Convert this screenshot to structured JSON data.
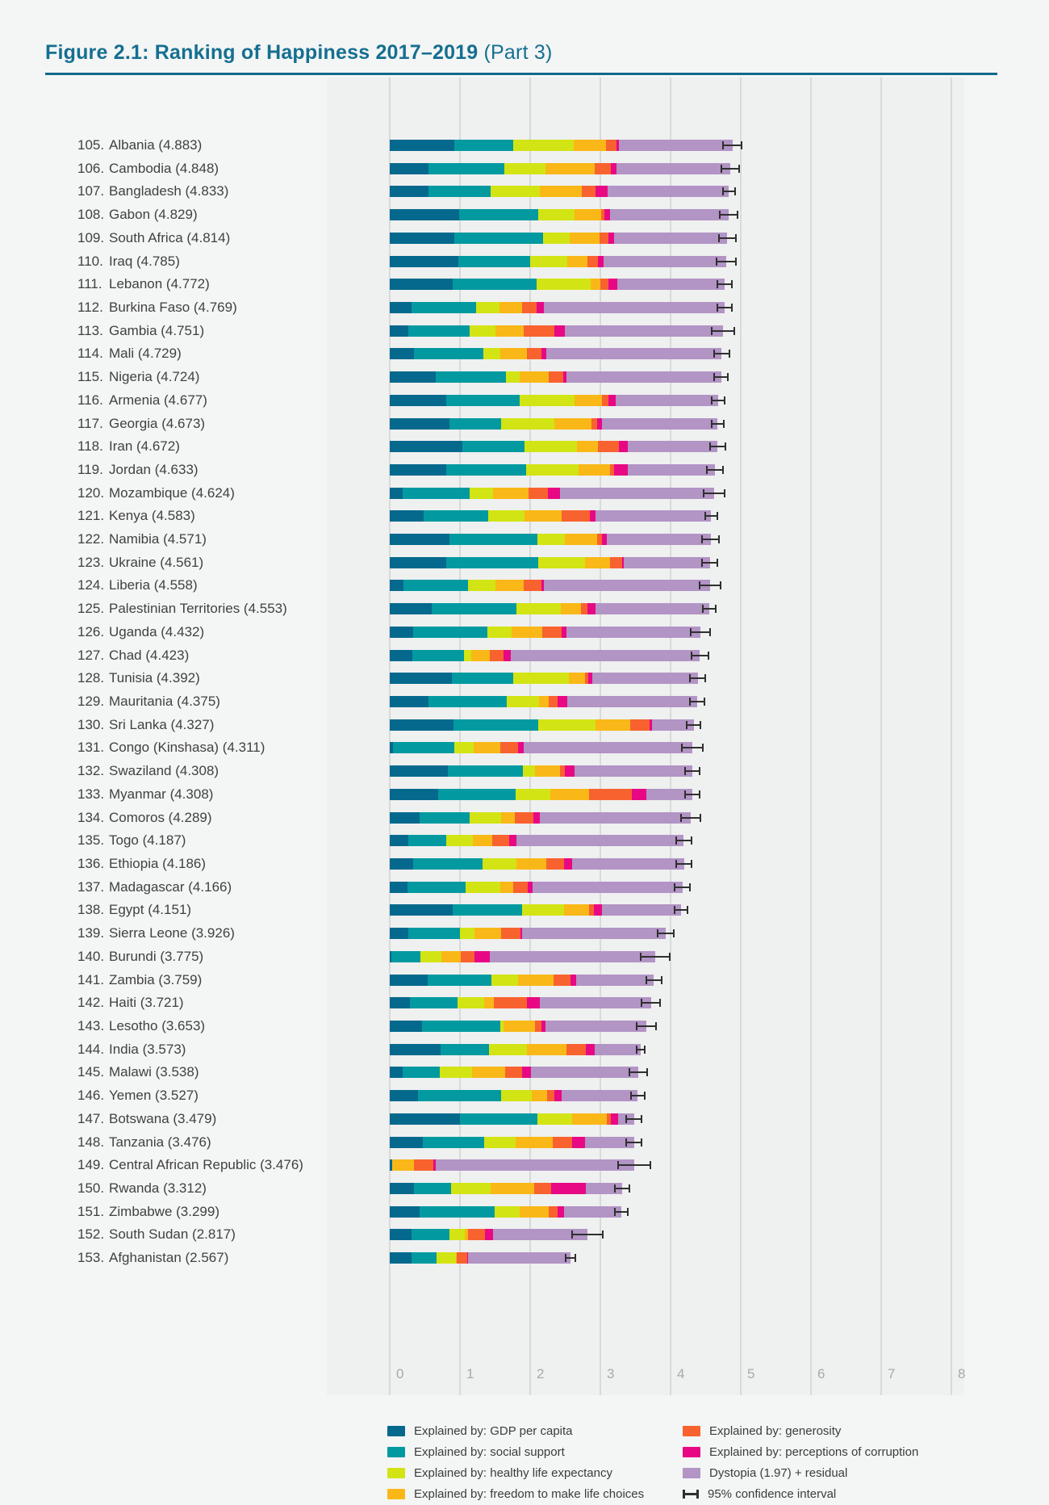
{
  "title": {
    "main": "Figure 2.1: Ranking of Happiness 2017–2019",
    "suffix": " (Part 3)"
  },
  "colors": {
    "page_background": "#f4f5f5",
    "plot_background": "#eff0f0",
    "gridline": "#d8d9d9",
    "title": "#156f90",
    "title_rule": "#0f6a8c",
    "country_label_text": "#414141",
    "tick_label_text": "#a8aaaa",
    "error_bar": "#2f2f2f"
  },
  "chart_data": {
    "type": "bar",
    "orientation": "horizontal",
    "stacked": true,
    "grid": true,
    "legend_position": "bottom",
    "x_axis": {
      "min": 0,
      "max": 8,
      "ticks": [
        "0",
        "1",
        "2",
        "3",
        "4",
        "5",
        "6",
        "7",
        "8"
      ]
    },
    "series": [
      {
        "id": "gdp",
        "label": "Explained by: GDP per capita",
        "color": "#04698d"
      },
      {
        "id": "social",
        "label": "Explained by: social support",
        "color": "#029aa0"
      },
      {
        "id": "health",
        "label": "Explained by: healthy life expectancy",
        "color": "#d2e414"
      },
      {
        "id": "freedom",
        "label": "Explained by: freedom to make life choices",
        "color": "#f9b817"
      },
      {
        "id": "generosity",
        "label": "Explained by: generosity",
        "color": "#f8622f"
      },
      {
        "id": "corruption",
        "label": "Explained by: perceptions of corruption",
        "color": "#e80884"
      },
      {
        "id": "dystopia",
        "label": "Dystopia (1.97) + residual",
        "color": "#b294c5"
      },
      {
        "id": "ci",
        "label": "95% confidence interval",
        "color": "#2f2f2f"
      }
    ],
    "value_order": [
      "gdp",
      "social",
      "health",
      "freedom",
      "generosity",
      "corruption",
      "dystopia"
    ],
    "countries": [
      {
        "rank": 105,
        "name": "Albania",
        "score": "4.883",
        "values": [
          0.92,
          0.84,
          0.86,
          0.46,
          0.15,
          0.03,
          1.62
        ],
        "ci": 0.14
      },
      {
        "rank": 106,
        "name": "Cambodia",
        "score": "4.848",
        "values": [
          0.55,
          1.08,
          0.59,
          0.7,
          0.23,
          0.08,
          1.62
        ],
        "ci": 0.14
      },
      {
        "rank": 107,
        "name": "Bangladesh",
        "score": "4.833",
        "values": [
          0.55,
          0.89,
          0.7,
          0.6,
          0.19,
          0.17,
          1.73
        ],
        "ci": 0.1
      },
      {
        "rank": 108,
        "name": "Gabon",
        "score": "4.829",
        "values": [
          0.99,
          1.12,
          0.52,
          0.38,
          0.05,
          0.08,
          1.69
        ],
        "ci": 0.14
      },
      {
        "rank": 109,
        "name": "South Africa",
        "score": "4.814",
        "values": [
          0.92,
          1.26,
          0.38,
          0.43,
          0.12,
          0.09,
          1.61
        ],
        "ci": 0.13
      },
      {
        "rank": 110,
        "name": "Iraq",
        "score": "4.785",
        "values": [
          0.98,
          1.02,
          0.53,
          0.29,
          0.15,
          0.08,
          1.74
        ],
        "ci": 0.15
      },
      {
        "rank": 111,
        "name": "Lebanon",
        "score": "4.772",
        "values": [
          0.9,
          1.19,
          0.77,
          0.14,
          0.11,
          0.13,
          1.53
        ],
        "ci": 0.12
      },
      {
        "rank": 112,
        "name": "Burkina Faso",
        "score": "4.769",
        "values": [
          0.31,
          0.92,
          0.33,
          0.33,
          0.2,
          0.11,
          2.57
        ],
        "ci": 0.12
      },
      {
        "rank": 113,
        "name": "Gambia",
        "score": "4.751",
        "values": [
          0.26,
          0.88,
          0.37,
          0.4,
          0.44,
          0.14,
          2.26
        ],
        "ci": 0.17
      },
      {
        "rank": 114,
        "name": "Mali",
        "score": "4.729",
        "values": [
          0.35,
          0.98,
          0.25,
          0.38,
          0.2,
          0.07,
          2.5
        ],
        "ci": 0.12
      },
      {
        "rank": 115,
        "name": "Nigeria",
        "score": "4.724",
        "values": [
          0.66,
          0.99,
          0.2,
          0.41,
          0.21,
          0.05,
          2.2
        ],
        "ci": 0.11
      },
      {
        "rank": 116,
        "name": "Armenia",
        "score": "4.677",
        "values": [
          0.8,
          1.05,
          0.78,
          0.39,
          0.1,
          0.1,
          1.46
        ],
        "ci": 0.1
      },
      {
        "rank": 117,
        "name": "Georgia",
        "score": "4.673",
        "values": [
          0.85,
          0.74,
          0.75,
          0.53,
          0.08,
          0.07,
          1.65
        ],
        "ci": 0.1
      },
      {
        "rank": 118,
        "name": "Iran",
        "score": "4.672",
        "values": [
          1.03,
          0.89,
          0.75,
          0.29,
          0.3,
          0.13,
          1.28
        ],
        "ci": 0.12
      },
      {
        "rank": 119,
        "name": "Jordan",
        "score": "4.633",
        "values": [
          0.81,
          1.13,
          0.75,
          0.45,
          0.06,
          0.19,
          1.24
        ],
        "ci": 0.13
      },
      {
        "rank": 120,
        "name": "Mozambique",
        "score": "4.624",
        "values": [
          0.18,
          0.96,
          0.33,
          0.51,
          0.27,
          0.18,
          2.19
        ],
        "ci": 0.16
      },
      {
        "rank": 121,
        "name": "Kenya",
        "score": "4.583",
        "values": [
          0.48,
          0.92,
          0.52,
          0.53,
          0.4,
          0.08,
          1.65
        ],
        "ci": 0.1
      },
      {
        "rank": 122,
        "name": "Namibia",
        "score": "4.571",
        "values": [
          0.85,
          1.25,
          0.4,
          0.45,
          0.07,
          0.07,
          1.48
        ],
        "ci": 0.13
      },
      {
        "rank": 123,
        "name": "Ukraine",
        "score": "4.561",
        "values": [
          0.81,
          1.3,
          0.67,
          0.36,
          0.17,
          0.02,
          1.23
        ],
        "ci": 0.12
      },
      {
        "rank": 124,
        "name": "Liberia",
        "score": "4.558",
        "values": [
          0.19,
          0.92,
          0.4,
          0.4,
          0.25,
          0.03,
          2.37
        ],
        "ci": 0.16
      },
      {
        "rank": 125,
        "name": "Palestinian Territories",
        "score": "4.553",
        "values": [
          0.6,
          1.2,
          0.64,
          0.28,
          0.1,
          0.11,
          1.62
        ],
        "ci": 0.1
      },
      {
        "rank": 126,
        "name": "Uganda",
        "score": "4.432",
        "values": [
          0.33,
          1.06,
          0.34,
          0.44,
          0.28,
          0.07,
          1.91
        ],
        "ci": 0.15
      },
      {
        "rank": 127,
        "name": "Chad",
        "score": "4.423",
        "values": [
          0.32,
          0.74,
          0.1,
          0.26,
          0.2,
          0.1,
          2.7
        ],
        "ci": 0.13
      },
      {
        "rank": 128,
        "name": "Tunisia",
        "score": "4.392",
        "values": [
          0.89,
          0.87,
          0.79,
          0.23,
          0.05,
          0.06,
          1.5
        ],
        "ci": 0.12
      },
      {
        "rank": 129,
        "name": "Mauritania",
        "score": "4.375",
        "values": [
          0.55,
          1.12,
          0.46,
          0.13,
          0.13,
          0.14,
          1.85
        ],
        "ci": 0.12
      },
      {
        "rank": 130,
        "name": "Sri Lanka",
        "score": "4.327",
        "values": [
          0.91,
          1.2,
          0.82,
          0.49,
          0.28,
          0.04,
          0.59
        ],
        "ci": 0.11
      },
      {
        "rank": 131,
        "name": "Congo (Kinshasa)",
        "score": "4.311",
        "values": [
          0.05,
          0.87,
          0.28,
          0.38,
          0.25,
          0.08,
          2.4
        ],
        "ci": 0.16
      },
      {
        "rank": 132,
        "name": "Swaziland",
        "score": "4.308",
        "values": [
          0.83,
          1.07,
          0.17,
          0.36,
          0.06,
          0.14,
          1.68
        ],
        "ci": 0.12
      },
      {
        "rank": 133,
        "name": "Myanmar",
        "score": "4.308",
        "values": [
          0.69,
          1.1,
          0.5,
          0.55,
          0.61,
          0.21,
          0.65
        ],
        "ci": 0.11
      },
      {
        "rank": 134,
        "name": "Comoros",
        "score": "4.289",
        "values": [
          0.42,
          0.72,
          0.45,
          0.19,
          0.27,
          0.09,
          2.15
        ],
        "ci": 0.15
      },
      {
        "rank": 135,
        "name": "Togo",
        "score": "4.187",
        "values": [
          0.27,
          0.54,
          0.37,
          0.28,
          0.24,
          0.1,
          2.39
        ],
        "ci": 0.12
      },
      {
        "rank": 136,
        "name": "Ethiopia",
        "score": "4.186",
        "values": [
          0.33,
          0.99,
          0.49,
          0.42,
          0.25,
          0.12,
          1.59
        ],
        "ci": 0.12
      },
      {
        "rank": 137,
        "name": "Madagascar",
        "score": "4.166",
        "values": [
          0.25,
          0.83,
          0.5,
          0.18,
          0.21,
          0.06,
          2.14
        ],
        "ci": 0.12
      },
      {
        "rank": 138,
        "name": "Egypt",
        "score": "4.151",
        "values": [
          0.9,
          0.98,
          0.6,
          0.36,
          0.07,
          0.11,
          1.13
        ],
        "ci": 0.1
      },
      {
        "rank": 139,
        "name": "Sierra Leone",
        "score": "3.926",
        "values": [
          0.26,
          0.74,
          0.21,
          0.38,
          0.27,
          0.03,
          2.04
        ],
        "ci": 0.13
      },
      {
        "rank": 140,
        "name": "Burundi",
        "score": "3.775",
        "values": [
          0.02,
          0.42,
          0.3,
          0.27,
          0.2,
          0.21,
          2.36
        ],
        "ci": 0.22
      },
      {
        "rank": 141,
        "name": "Zambia",
        "score": "3.759",
        "values": [
          0.54,
          0.91,
          0.38,
          0.5,
          0.24,
          0.09,
          1.1
        ],
        "ci": 0.12
      },
      {
        "rank": 142,
        "name": "Haiti",
        "score": "3.721",
        "values": [
          0.29,
          0.67,
          0.38,
          0.14,
          0.47,
          0.19,
          1.58
        ],
        "ci": 0.14
      },
      {
        "rank": 143,
        "name": "Lesotho",
        "score": "3.653",
        "values": [
          0.46,
          1.11,
          0.05,
          0.45,
          0.09,
          0.06,
          1.43
        ],
        "ci": 0.15
      },
      {
        "rank": 144,
        "name": "India",
        "score": "3.573",
        "values": [
          0.72,
          0.69,
          0.54,
          0.57,
          0.27,
          0.13,
          0.65
        ],
        "ci": 0.07
      },
      {
        "rank": 145,
        "name": "Malawi",
        "score": "3.538",
        "values": [
          0.18,
          0.53,
          0.46,
          0.47,
          0.24,
          0.13,
          1.53
        ],
        "ci": 0.14
      },
      {
        "rank": 146,
        "name": "Yemen",
        "score": "3.527",
        "values": [
          0.4,
          1.19,
          0.43,
          0.22,
          0.11,
          0.1,
          1.08
        ],
        "ci": 0.11
      },
      {
        "rank": 147,
        "name": "Botswana",
        "score": "3.479",
        "values": [
          1.0,
          1.1,
          0.5,
          0.49,
          0.06,
          0.1,
          0.23
        ],
        "ci": 0.12
      },
      {
        "rank": 148,
        "name": "Tanzania",
        "score": "3.476",
        "values": [
          0.47,
          0.87,
          0.45,
          0.53,
          0.28,
          0.18,
          0.7
        ],
        "ci": 0.12
      },
      {
        "rank": 149,
        "name": "Central African Republic",
        "score": "3.476",
        "values": [
          0.04,
          0.0,
          0.0,
          0.31,
          0.27,
          0.03,
          2.83
        ],
        "ci": 0.24
      },
      {
        "rank": 150,
        "name": "Rwanda",
        "score": "3.312",
        "values": [
          0.35,
          0.52,
          0.57,
          0.62,
          0.24,
          0.49,
          0.52
        ],
        "ci": 0.12
      },
      {
        "rank": 151,
        "name": "Zimbabwe",
        "score": "3.299",
        "values": [
          0.43,
          1.06,
          0.36,
          0.41,
          0.13,
          0.09,
          0.82
        ],
        "ci": 0.1
      },
      {
        "rank": 152,
        "name": "South Sudan",
        "score": "2.817",
        "values": [
          0.31,
          0.54,
          0.22,
          0.05,
          0.24,
          0.11,
          1.35
        ],
        "ci": 0.23
      },
      {
        "rank": 153,
        "name": "Afghanistan",
        "score": "2.567",
        "values": [
          0.31,
          0.36,
          0.27,
          0.01,
          0.15,
          0.02,
          1.45
        ],
        "ci": 0.08
      }
    ]
  }
}
